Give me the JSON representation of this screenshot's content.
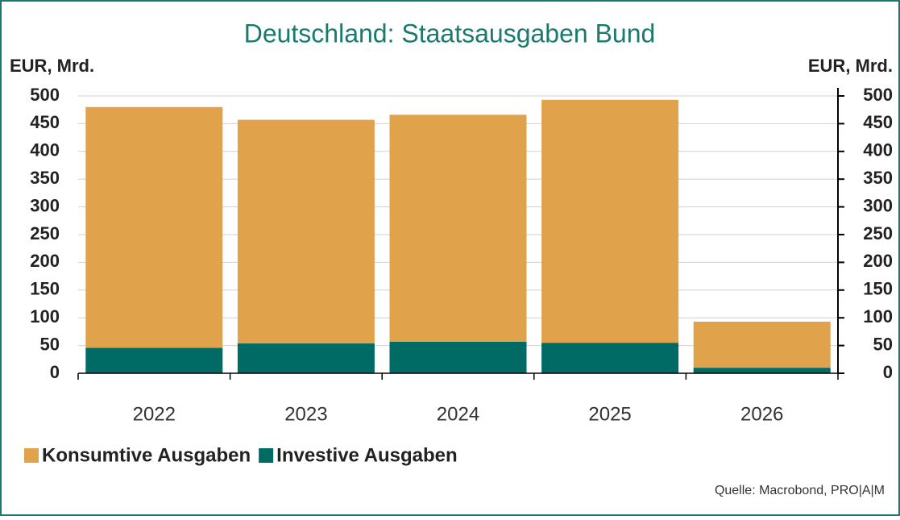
{
  "chart_data": {
    "type": "stacked_bar",
    "title": "Deutschland: Staatsausgaben Bund",
    "y_label": "EUR, Mrd.",
    "y2_label": "EUR, Mrd.",
    "categories": [
      "2022",
      "2023",
      "2024",
      "2025",
      "2026"
    ],
    "series": [
      {
        "name": "Konsumtive Ausgaben",
        "color": "#e0a24a",
        "values": [
          434,
          403,
          409,
          438,
          83
        ]
      },
      {
        "name": "Investive Ausgaben",
        "color": "#006a64",
        "values": [
          46,
          54,
          57,
          55,
          10
        ]
      }
    ],
    "ylim": [
      0,
      500
    ],
    "yticks": [
      0,
      50,
      100,
      150,
      200,
      250,
      300,
      350,
      400,
      450,
      500
    ],
    "y2lim": [
      0,
      500
    ],
    "y2ticks": [
      0,
      50,
      100,
      150,
      200,
      250,
      300,
      350,
      400,
      450,
      500
    ],
    "grid": true,
    "legend": "bottom-left",
    "source": "Quelle: Macrobond, PRO|A|M"
  }
}
